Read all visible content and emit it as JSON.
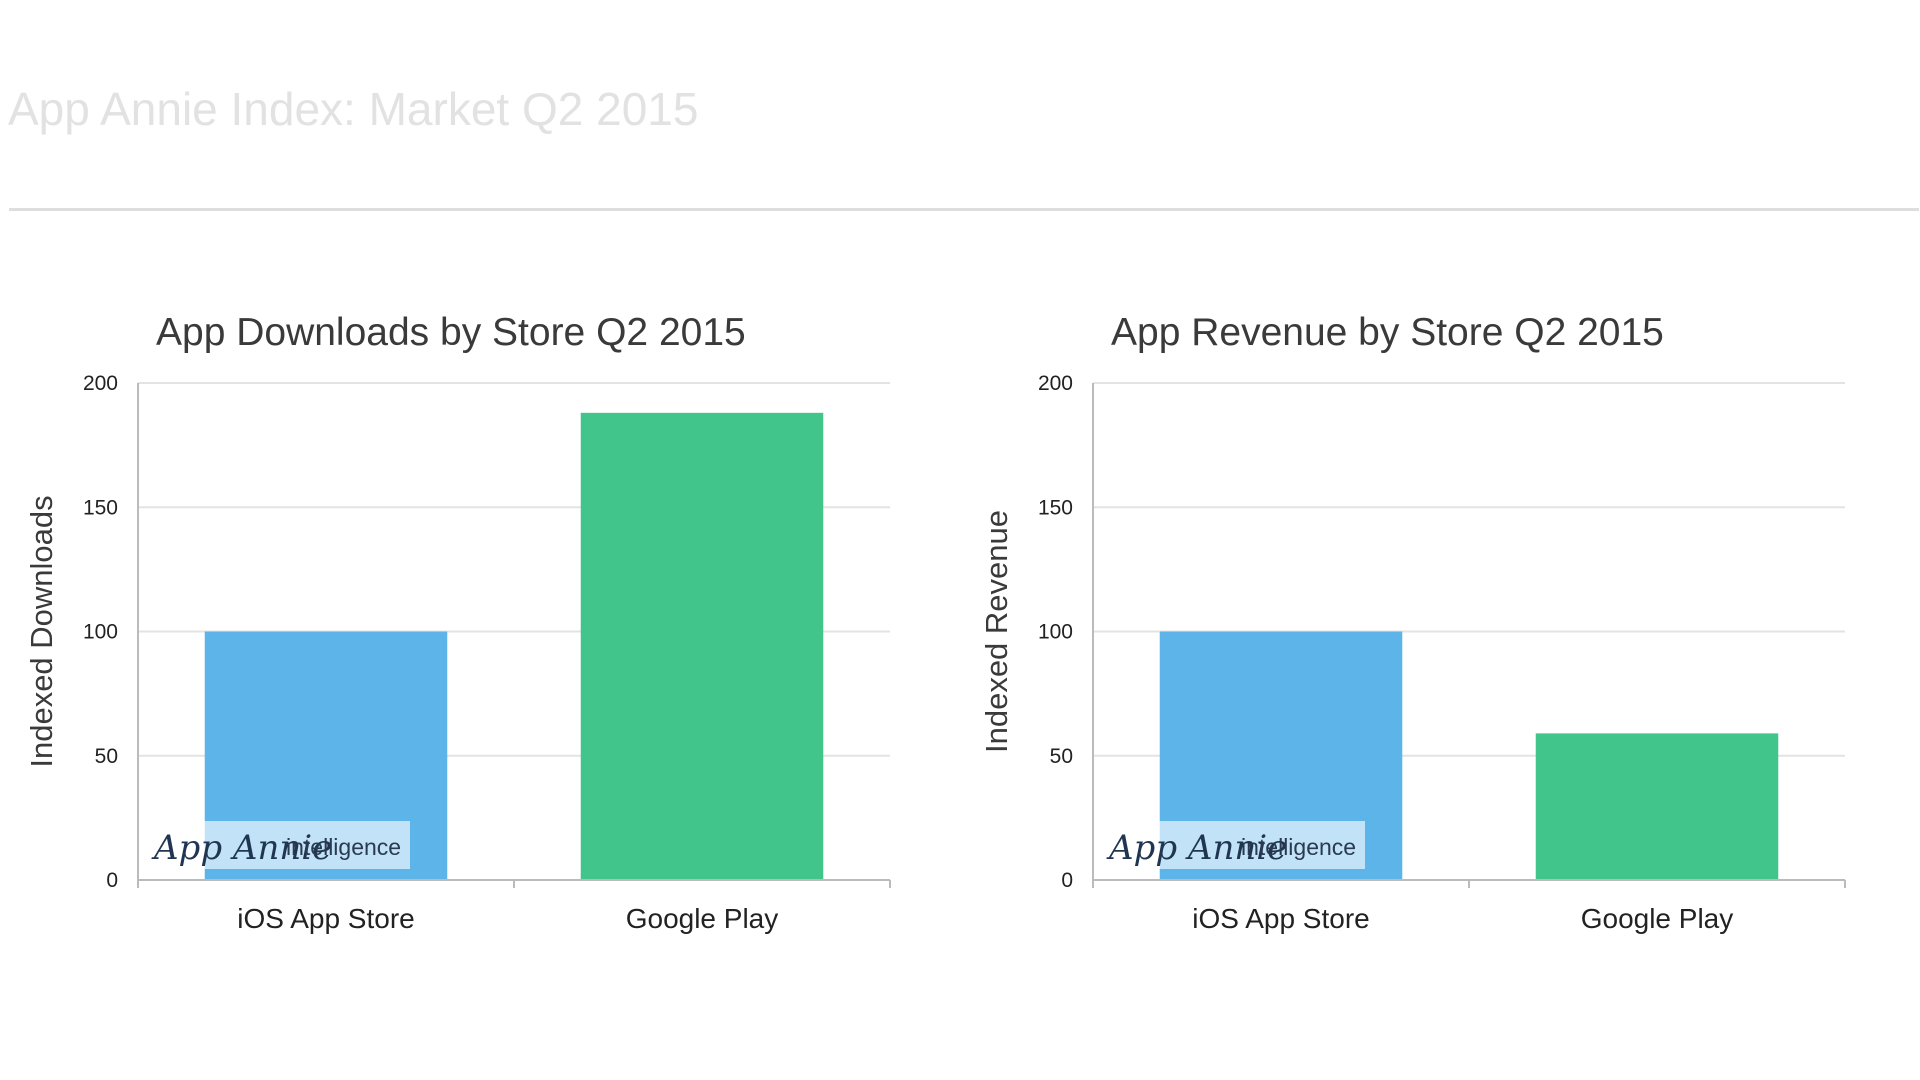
{
  "page": {
    "title": "App Annie Index: Market Q2 2015"
  },
  "colors": {
    "ios": "#5db4e9",
    "google": "#41c58a",
    "grid": "#e3e3e3",
    "axis": "#bbbbbb",
    "title_faded": "#e2e2e2"
  },
  "watermark": {
    "brand": "App Annie",
    "suffix": "intelligence"
  },
  "chart_data": [
    {
      "type": "bar",
      "title": "App Downloads by Store Q2 2015",
      "xlabel": "",
      "ylabel": "Indexed Downloads",
      "categories": [
        "iOS App Store",
        "Google Play"
      ],
      "values": [
        100,
        188
      ],
      "ylim": [
        0,
        200
      ],
      "yticks": [
        0,
        50,
        100,
        150,
        200
      ],
      "ytick_labels": [
        "0",
        "50",
        "100",
        "150",
        "200"
      ],
      "grid": true,
      "legend": "none"
    },
    {
      "type": "bar",
      "title": "App Revenue by Store Q2 2015",
      "xlabel": "",
      "ylabel": "Indexed Revenue",
      "categories": [
        "iOS App Store",
        "Google Play"
      ],
      "values": [
        100,
        59
      ],
      "ylim": [
        0,
        200
      ],
      "yticks": [
        0,
        50,
        100,
        150,
        200
      ],
      "ytick_labels": [
        "0",
        "50",
        "100",
        "150",
        "200"
      ],
      "grid": true,
      "legend": "none"
    }
  ]
}
